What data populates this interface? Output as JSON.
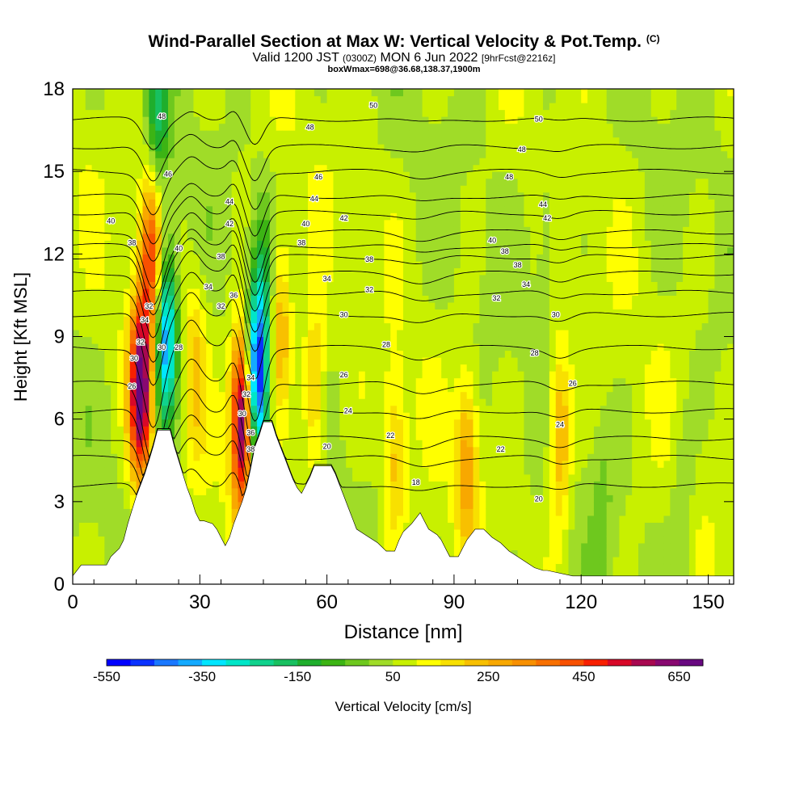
{
  "title": {
    "main": "Wind-Parallel Section at Max W: Vertical Velocity & Pot.Temp.",
    "copyright": "(C)",
    "valid_prefix": "Valid 1200 JST",
    "valid_utc": "(0300Z)",
    "valid_date": "MON 6 Jun 2022",
    "forecast": "[9hrFcst@2216z]",
    "box_info": "boxWmax=698@36.68,138.37,1900m"
  },
  "chart_data": {
    "type": "heatmap",
    "xlabel": "Distance [nm]",
    "ylabel": "Height [Kft MSL]",
    "xlim": [
      0,
      156
    ],
    "ylim": [
      0,
      18
    ],
    "x_ticks": [
      0,
      30,
      60,
      90,
      120,
      150
    ],
    "y_ticks": [
      0,
      3,
      6,
      9,
      12,
      15,
      18
    ],
    "colorbar": {
      "label": "Vertical Velocity [cm/s]",
      "tick_labels": [
        -550,
        -350,
        -150,
        50,
        250,
        450,
        650
      ],
      "bins": [
        -550,
        -500,
        -450,
        -400,
        -350,
        -300,
        -250,
        -200,
        -150,
        -100,
        -50,
        0,
        50,
        100,
        150,
        200,
        250,
        300,
        350,
        400,
        450,
        500,
        550,
        600,
        650,
        700
      ],
      "colors": [
        "#0000ff",
        "#0a32ff",
        "#1a78ff",
        "#14aaff",
        "#00e6ff",
        "#00e6c8",
        "#10d28c",
        "#18c060",
        "#1fae2c",
        "#3cb414",
        "#6ec81e",
        "#a0dc28",
        "#c8f000",
        "#ffff00",
        "#f8e000",
        "#f8c000",
        "#f8a800",
        "#f89000",
        "#f87000",
        "#f85000",
        "#f82000",
        "#d80828",
        "#a80850",
        "#880870",
        "#680880"
      ]
    },
    "terrain_kft": [
      [
        0,
        0.3
      ],
      [
        2,
        0.7
      ],
      [
        8,
        0.7
      ],
      [
        9,
        1.0
      ],
      [
        11,
        1.3
      ],
      [
        12,
        1.6
      ],
      [
        13,
        2.2
      ],
      [
        14,
        2.7
      ],
      [
        15,
        3.2
      ],
      [
        16,
        3.6
      ],
      [
        17,
        4.0
      ],
      [
        18,
        4.5
      ],
      [
        19,
        5.0
      ],
      [
        20,
        5.6
      ],
      [
        23,
        5.6
      ],
      [
        24,
        5.0
      ],
      [
        25,
        4.5
      ],
      [
        26,
        4.0
      ],
      [
        27,
        3.5
      ],
      [
        28,
        3.1
      ],
      [
        29,
        2.6
      ],
      [
        30,
        2.3
      ],
      [
        31,
        2.3
      ],
      [
        33,
        2.2
      ],
      [
        34,
        2.0
      ],
      [
        35,
        1.7
      ],
      [
        36,
        1.4
      ],
      [
        37,
        1.7
      ],
      [
        38,
        2.2
      ],
      [
        39,
        2.6
      ],
      [
        40,
        3.0
      ],
      [
        41,
        3.5
      ],
      [
        42,
        4.2
      ],
      [
        43,
        5.0
      ],
      [
        44,
        5.4
      ],
      [
        45,
        5.9
      ],
      [
        47,
        5.9
      ],
      [
        48,
        5.4
      ],
      [
        49,
        5.0
      ],
      [
        50,
        4.6
      ],
      [
        51,
        4.2
      ],
      [
        52,
        3.8
      ],
      [
        53,
        3.5
      ],
      [
        54,
        3.3
      ],
      [
        55,
        3.6
      ],
      [
        56,
        3.9
      ],
      [
        57,
        4.3
      ],
      [
        61,
        4.3
      ],
      [
        62,
        4.0
      ],
      [
        63,
        3.6
      ],
      [
        64,
        3.2
      ],
      [
        65,
        2.8
      ],
      [
        66,
        2.4
      ],
      [
        67,
        2.0
      ],
      [
        69,
        1.8
      ],
      [
        72,
        1.5
      ],
      [
        74,
        1.2
      ],
      [
        76,
        1.2
      ],
      [
        77,
        1.6
      ],
      [
        78,
        1.9
      ],
      [
        80,
        2.2
      ],
      [
        82,
        2.6
      ],
      [
        83,
        2.3
      ],
      [
        84,
        2.0
      ],
      [
        86,
        1.8
      ],
      [
        87,
        1.6
      ],
      [
        88,
        1.3
      ],
      [
        89,
        1.0
      ],
      [
        91,
        1.0
      ],
      [
        92,
        1.3
      ],
      [
        93,
        1.6
      ],
      [
        95,
        2.0
      ],
      [
        97,
        2.0
      ],
      [
        99,
        1.7
      ],
      [
        101,
        1.5
      ],
      [
        103,
        1.2
      ],
      [
        105,
        1.0
      ],
      [
        107,
        0.8
      ],
      [
        109,
        0.6
      ],
      [
        111,
        0.5
      ],
      [
        112,
        0.5
      ],
      [
        118,
        0.3
      ],
      [
        126,
        0.3
      ],
      [
        155,
        0.3
      ]
    ],
    "w_features_cm_s": [
      {
        "x": 18.5,
        "z": 12.0,
        "w": 380
      },
      {
        "x": 16.0,
        "z": 7.0,
        "w": 620
      },
      {
        "x": 22.0,
        "z": 9.0,
        "w": -480
      },
      {
        "x": 20.0,
        "z": 17.0,
        "w": -220
      },
      {
        "x": 29.0,
        "z": 8.0,
        "w": 140
      },
      {
        "x": 40.0,
        "z": 6.0,
        "w": 650
      },
      {
        "x": 43.5,
        "z": 7.5,
        "w": -550
      },
      {
        "x": 45.0,
        "z": 11.0,
        "w": -150
      },
      {
        "x": 49.0,
        "z": 9.5,
        "w": 220
      },
      {
        "x": 57.0,
        "z": 7.0,
        "w": 190
      },
      {
        "x": 76.0,
        "z": 4.5,
        "w": 160
      },
      {
        "x": 93.0,
        "z": 4.5,
        "w": 220
      },
      {
        "x": 115.0,
        "z": 5.5,
        "w": 240
      },
      {
        "x": 112.0,
        "z": 13.0,
        "w": -70
      },
      {
        "x": 125.0,
        "z": 3.0,
        "w": -60
      },
      {
        "x": 144.0,
        "z": 3.0,
        "w": -80
      }
    ],
    "theta_contours": [
      {
        "theta": 18,
        "base_kft": 3.6
      },
      {
        "theta": 20,
        "base_kft": 4.6
      },
      {
        "theta": 22,
        "base_kft": 5.3
      },
      {
        "theta": 24,
        "base_kft": 6.3
      },
      {
        "theta": 26,
        "base_kft": 7.3
      },
      {
        "theta": 28,
        "base_kft": 8.6
      },
      {
        "theta": 30,
        "base_kft": 9.8
      },
      {
        "theta": 32,
        "base_kft": 10.6
      },
      {
        "theta": 34,
        "base_kft": 11.3
      },
      {
        "theta": 36,
        "base_kft": 11.9
      },
      {
        "theta": 38,
        "base_kft": 12.3
      },
      {
        "theta": 40,
        "base_kft": 12.8
      },
      {
        "theta": 42,
        "base_kft": 13.5
      },
      {
        "theta": 44,
        "base_kft": 14.1
      },
      {
        "theta": 46,
        "base_kft": 15.0
      },
      {
        "theta": 48,
        "base_kft": 15.9
      },
      {
        "theta": 50,
        "base_kft": 16.9
      }
    ],
    "contour_labels": [
      {
        "text": "50",
        "x": 71,
        "z": 17.4
      },
      {
        "text": "50",
        "x": 110,
        "z": 16.9
      },
      {
        "text": "48",
        "x": 56,
        "z": 16.6
      },
      {
        "text": "48",
        "x": 106,
        "z": 15.8
      },
      {
        "text": "48",
        "x": 21,
        "z": 17.0
      },
      {
        "text": "46",
        "x": 22.5,
        "z": 14.9
      },
      {
        "text": "46",
        "x": 58,
        "z": 14.8
      },
      {
        "text": "48",
        "x": 103,
        "z": 14.8
      },
      {
        "text": "44",
        "x": 37,
        "z": 13.9
      },
      {
        "text": "44",
        "x": 57,
        "z": 14.0
      },
      {
        "text": "44",
        "x": 111,
        "z": 13.8
      },
      {
        "text": "42",
        "x": 37,
        "z": 13.1
      },
      {
        "text": "42",
        "x": 64,
        "z": 13.3
      },
      {
        "text": "42",
        "x": 112,
        "z": 13.3
      },
      {
        "text": "40",
        "x": 9,
        "z": 13.2
      },
      {
        "text": "40",
        "x": 55,
        "z": 13.1
      },
      {
        "text": "40",
        "x": 25,
        "z": 12.2
      },
      {
        "text": "40",
        "x": 99,
        "z": 12.5
      },
      {
        "text": "38",
        "x": 14,
        "z": 12.4
      },
      {
        "text": "38",
        "x": 54,
        "z": 12.4
      },
      {
        "text": "38",
        "x": 102,
        "z": 12.1
      },
      {
        "text": "38",
        "x": 70,
        "z": 11.8
      },
      {
        "text": "38",
        "x": 105,
        "z": 11.6
      },
      {
        "text": "38",
        "x": 35,
        "z": 11.9
      },
      {
        "text": "34",
        "x": 32,
        "z": 10.8
      },
      {
        "text": "34",
        "x": 60,
        "z": 11.1
      },
      {
        "text": "34",
        "x": 107,
        "z": 10.9
      },
      {
        "text": "32",
        "x": 70,
        "z": 10.7
      },
      {
        "text": "32",
        "x": 100,
        "z": 10.4
      },
      {
        "text": "32",
        "x": 35,
        "z": 10.1
      },
      {
        "text": "32",
        "x": 18,
        "z": 10.1
      },
      {
        "text": "30",
        "x": 64,
        "z": 9.8
      },
      {
        "text": "30",
        "x": 114,
        "z": 9.8
      },
      {
        "text": "28",
        "x": 74,
        "z": 8.7
      },
      {
        "text": "28",
        "x": 109,
        "z": 8.4
      },
      {
        "text": "28",
        "x": 25,
        "z": 8.6
      },
      {
        "text": "30",
        "x": 21,
        "z": 8.6
      },
      {
        "text": "34",
        "x": 17,
        "z": 9.6
      },
      {
        "text": "32",
        "x": 16,
        "z": 8.8
      },
      {
        "text": "30",
        "x": 14.5,
        "z": 8.2
      },
      {
        "text": "26",
        "x": 14,
        "z": 7.2
      },
      {
        "text": "34",
        "x": 42,
        "z": 7.5
      },
      {
        "text": "32",
        "x": 41,
        "z": 6.9
      },
      {
        "text": "30",
        "x": 40,
        "z": 6.2
      },
      {
        "text": "36",
        "x": 42,
        "z": 5.5
      },
      {
        "text": "38",
        "x": 42,
        "z": 4.9
      },
      {
        "text": "36",
        "x": 38,
        "z": 10.5
      },
      {
        "text": "26",
        "x": 64,
        "z": 7.6
      },
      {
        "text": "24",
        "x": 65,
        "z": 6.3
      },
      {
        "text": "26",
        "x": 118,
        "z": 7.3
      },
      {
        "text": "24",
        "x": 115,
        "z": 5.8
      },
      {
        "text": "22",
        "x": 75,
        "z": 5.4
      },
      {
        "text": "22",
        "x": 101,
        "z": 4.9
      },
      {
        "text": "20",
        "x": 60,
        "z": 5.0
      },
      {
        "text": "20",
        "x": 110,
        "z": 3.1
      },
      {
        "text": "18",
        "x": 81,
        "z": 3.7
      }
    ]
  }
}
